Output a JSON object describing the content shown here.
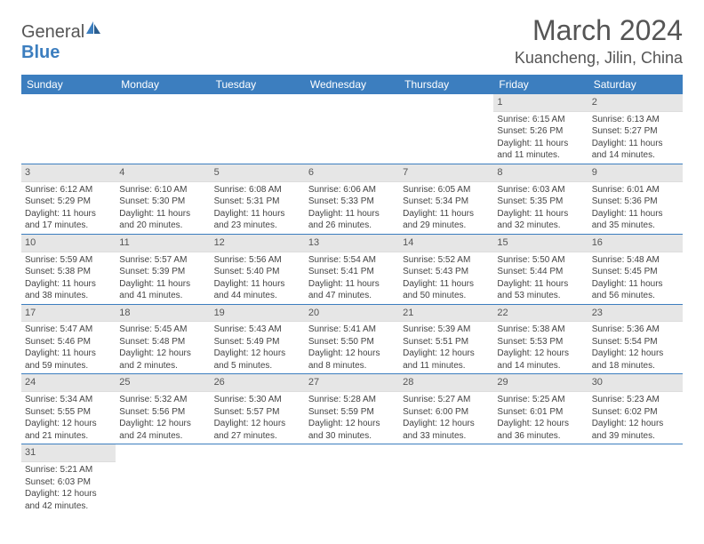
{
  "logo": {
    "text1": "General",
    "text2": "Blue"
  },
  "title": "March 2024",
  "location": "Kuancheng, Jilin, China",
  "day_headers": [
    "Sunday",
    "Monday",
    "Tuesday",
    "Wednesday",
    "Thursday",
    "Friday",
    "Saturday"
  ],
  "colors": {
    "header_bg": "#3c7ebf",
    "daynum_bg": "#e6e6e6",
    "row_border": "#3c7ebf",
    "text": "#444444"
  },
  "weeks": [
    [
      {
        "day": "",
        "sunrise": "",
        "sunset": "",
        "daylight": "",
        "empty": true
      },
      {
        "day": "",
        "sunrise": "",
        "sunset": "",
        "daylight": "",
        "empty": true
      },
      {
        "day": "",
        "sunrise": "",
        "sunset": "",
        "daylight": "",
        "empty": true
      },
      {
        "day": "",
        "sunrise": "",
        "sunset": "",
        "daylight": "",
        "empty": true
      },
      {
        "day": "",
        "sunrise": "",
        "sunset": "",
        "daylight": "",
        "empty": true
      },
      {
        "day": "1",
        "sunrise": "Sunrise: 6:15 AM",
        "sunset": "Sunset: 5:26 PM",
        "daylight": "Daylight: 11 hours and 11 minutes."
      },
      {
        "day": "2",
        "sunrise": "Sunrise: 6:13 AM",
        "sunset": "Sunset: 5:27 PM",
        "daylight": "Daylight: 11 hours and 14 minutes."
      }
    ],
    [
      {
        "day": "3",
        "sunrise": "Sunrise: 6:12 AM",
        "sunset": "Sunset: 5:29 PM",
        "daylight": "Daylight: 11 hours and 17 minutes."
      },
      {
        "day": "4",
        "sunrise": "Sunrise: 6:10 AM",
        "sunset": "Sunset: 5:30 PM",
        "daylight": "Daylight: 11 hours and 20 minutes."
      },
      {
        "day": "5",
        "sunrise": "Sunrise: 6:08 AM",
        "sunset": "Sunset: 5:31 PM",
        "daylight": "Daylight: 11 hours and 23 minutes."
      },
      {
        "day": "6",
        "sunrise": "Sunrise: 6:06 AM",
        "sunset": "Sunset: 5:33 PM",
        "daylight": "Daylight: 11 hours and 26 minutes."
      },
      {
        "day": "7",
        "sunrise": "Sunrise: 6:05 AM",
        "sunset": "Sunset: 5:34 PM",
        "daylight": "Daylight: 11 hours and 29 minutes."
      },
      {
        "day": "8",
        "sunrise": "Sunrise: 6:03 AM",
        "sunset": "Sunset: 5:35 PM",
        "daylight": "Daylight: 11 hours and 32 minutes."
      },
      {
        "day": "9",
        "sunrise": "Sunrise: 6:01 AM",
        "sunset": "Sunset: 5:36 PM",
        "daylight": "Daylight: 11 hours and 35 minutes."
      }
    ],
    [
      {
        "day": "10",
        "sunrise": "Sunrise: 5:59 AM",
        "sunset": "Sunset: 5:38 PM",
        "daylight": "Daylight: 11 hours and 38 minutes."
      },
      {
        "day": "11",
        "sunrise": "Sunrise: 5:57 AM",
        "sunset": "Sunset: 5:39 PM",
        "daylight": "Daylight: 11 hours and 41 minutes."
      },
      {
        "day": "12",
        "sunrise": "Sunrise: 5:56 AM",
        "sunset": "Sunset: 5:40 PM",
        "daylight": "Daylight: 11 hours and 44 minutes."
      },
      {
        "day": "13",
        "sunrise": "Sunrise: 5:54 AM",
        "sunset": "Sunset: 5:41 PM",
        "daylight": "Daylight: 11 hours and 47 minutes."
      },
      {
        "day": "14",
        "sunrise": "Sunrise: 5:52 AM",
        "sunset": "Sunset: 5:43 PM",
        "daylight": "Daylight: 11 hours and 50 minutes."
      },
      {
        "day": "15",
        "sunrise": "Sunrise: 5:50 AM",
        "sunset": "Sunset: 5:44 PM",
        "daylight": "Daylight: 11 hours and 53 minutes."
      },
      {
        "day": "16",
        "sunrise": "Sunrise: 5:48 AM",
        "sunset": "Sunset: 5:45 PM",
        "daylight": "Daylight: 11 hours and 56 minutes."
      }
    ],
    [
      {
        "day": "17",
        "sunrise": "Sunrise: 5:47 AM",
        "sunset": "Sunset: 5:46 PM",
        "daylight": "Daylight: 11 hours and 59 minutes."
      },
      {
        "day": "18",
        "sunrise": "Sunrise: 5:45 AM",
        "sunset": "Sunset: 5:48 PM",
        "daylight": "Daylight: 12 hours and 2 minutes."
      },
      {
        "day": "19",
        "sunrise": "Sunrise: 5:43 AM",
        "sunset": "Sunset: 5:49 PM",
        "daylight": "Daylight: 12 hours and 5 minutes."
      },
      {
        "day": "20",
        "sunrise": "Sunrise: 5:41 AM",
        "sunset": "Sunset: 5:50 PM",
        "daylight": "Daylight: 12 hours and 8 minutes."
      },
      {
        "day": "21",
        "sunrise": "Sunrise: 5:39 AM",
        "sunset": "Sunset: 5:51 PM",
        "daylight": "Daylight: 12 hours and 11 minutes."
      },
      {
        "day": "22",
        "sunrise": "Sunrise: 5:38 AM",
        "sunset": "Sunset: 5:53 PM",
        "daylight": "Daylight: 12 hours and 14 minutes."
      },
      {
        "day": "23",
        "sunrise": "Sunrise: 5:36 AM",
        "sunset": "Sunset: 5:54 PM",
        "daylight": "Daylight: 12 hours and 18 minutes."
      }
    ],
    [
      {
        "day": "24",
        "sunrise": "Sunrise: 5:34 AM",
        "sunset": "Sunset: 5:55 PM",
        "daylight": "Daylight: 12 hours and 21 minutes."
      },
      {
        "day": "25",
        "sunrise": "Sunrise: 5:32 AM",
        "sunset": "Sunset: 5:56 PM",
        "daylight": "Daylight: 12 hours and 24 minutes."
      },
      {
        "day": "26",
        "sunrise": "Sunrise: 5:30 AM",
        "sunset": "Sunset: 5:57 PM",
        "daylight": "Daylight: 12 hours and 27 minutes."
      },
      {
        "day": "27",
        "sunrise": "Sunrise: 5:28 AM",
        "sunset": "Sunset: 5:59 PM",
        "daylight": "Daylight: 12 hours and 30 minutes."
      },
      {
        "day": "28",
        "sunrise": "Sunrise: 5:27 AM",
        "sunset": "Sunset: 6:00 PM",
        "daylight": "Daylight: 12 hours and 33 minutes."
      },
      {
        "day": "29",
        "sunrise": "Sunrise: 5:25 AM",
        "sunset": "Sunset: 6:01 PM",
        "daylight": "Daylight: 12 hours and 36 minutes."
      },
      {
        "day": "30",
        "sunrise": "Sunrise: 5:23 AM",
        "sunset": "Sunset: 6:02 PM",
        "daylight": "Daylight: 12 hours and 39 minutes."
      }
    ],
    [
      {
        "day": "31",
        "sunrise": "Sunrise: 5:21 AM",
        "sunset": "Sunset: 6:03 PM",
        "daylight": "Daylight: 12 hours and 42 minutes."
      },
      {
        "day": "",
        "sunrise": "",
        "sunset": "",
        "daylight": "",
        "empty": true
      },
      {
        "day": "",
        "sunrise": "",
        "sunset": "",
        "daylight": "",
        "empty": true
      },
      {
        "day": "",
        "sunrise": "",
        "sunset": "",
        "daylight": "",
        "empty": true
      },
      {
        "day": "",
        "sunrise": "",
        "sunset": "",
        "daylight": "",
        "empty": true
      },
      {
        "day": "",
        "sunrise": "",
        "sunset": "",
        "daylight": "",
        "empty": true
      },
      {
        "day": "",
        "sunrise": "",
        "sunset": "",
        "daylight": "",
        "empty": true
      }
    ]
  ]
}
